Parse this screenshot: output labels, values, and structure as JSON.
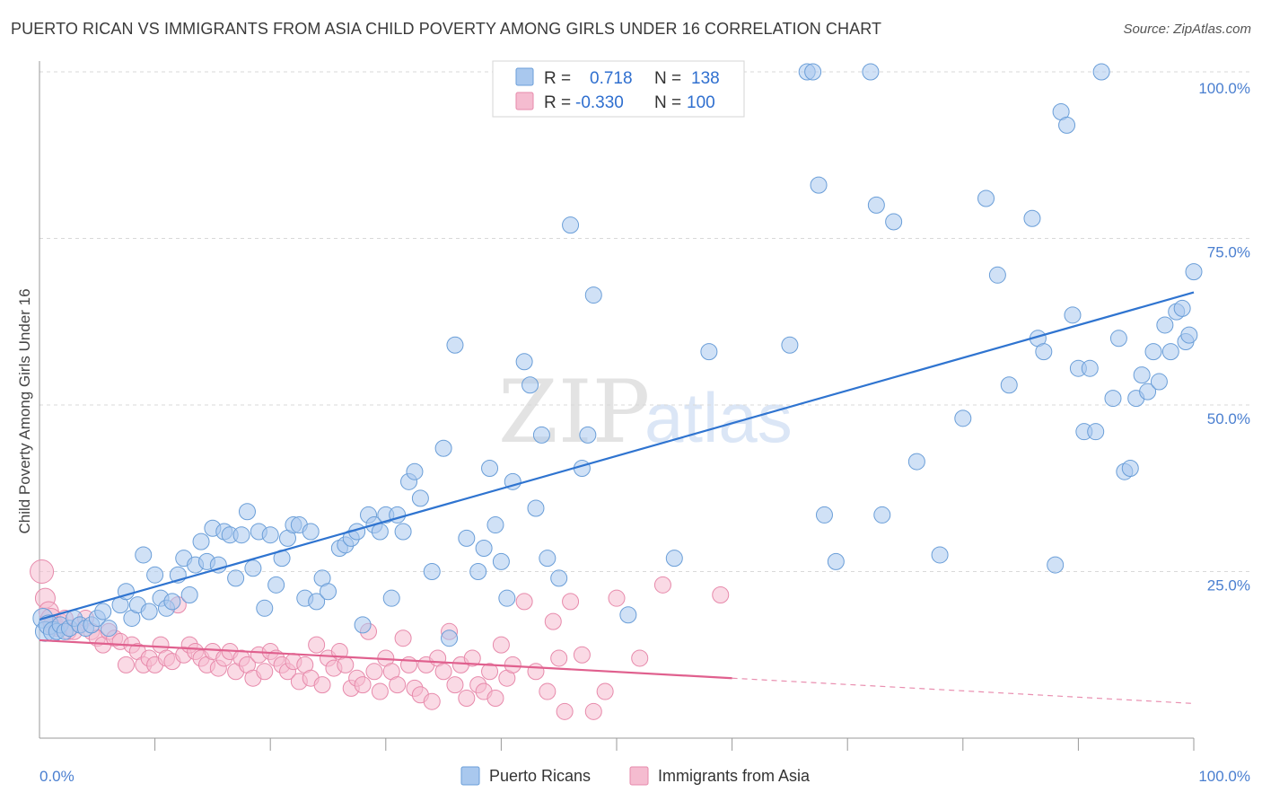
{
  "title": "PUERTO RICAN VS IMMIGRANTS FROM ASIA CHILD POVERTY AMONG GIRLS UNDER 16 CORRELATION CHART",
  "source": "Source: ZipAtlas.com",
  "watermark": {
    "zip": "ZIP",
    "atlas": "atlas"
  },
  "legend_top": [
    {
      "r_label": "R =",
      "r_value": "0.718",
      "n_label": "N =",
      "n_value": "138"
    },
    {
      "r_label": "R =",
      "r_value": "-0.330",
      "n_label": "N =",
      "n_value": "100"
    }
  ],
  "colors": {
    "blue_fill": "#a9c8ee",
    "blue_stroke": "#6a9ed8",
    "blue_line": "#2f74d0",
    "pink_fill": "#f5bcd0",
    "pink_stroke": "#e78aab",
    "pink_line": "#e0608e",
    "grid": "#d9d9d9",
    "tick_text": "#4a7fd0"
  },
  "chart_data": {
    "type": "scatter",
    "title": "PUERTO RICAN VS IMMIGRANTS FROM ASIA CHILD POVERTY AMONG GIRLS UNDER 16 CORRELATION CHART",
    "xlabel": "",
    "ylabel": "Child Poverty Among Girls Under 16",
    "xlim": [
      0,
      100
    ],
    "ylim": [
      0,
      100
    ],
    "x_tick_labels": [
      "0.0%",
      "100.0%"
    ],
    "y_tick_labels": [
      "25.0%",
      "50.0%",
      "75.0%",
      "100.0%"
    ],
    "y_ticks": [
      25,
      50,
      75,
      100
    ],
    "series": [
      {
        "name": "Puerto Ricans",
        "r": 0.718,
        "n": 138,
        "trend": {
          "x0": 0,
          "y0": 17.8,
          "x1": 100,
          "y1": 66.9,
          "dashed_from": null
        },
        "points": [
          [
            0.3,
            18
          ],
          [
            0.5,
            16
          ],
          [
            0.8,
            17
          ],
          [
            1.2,
            16
          ],
          [
            1.5,
            16
          ],
          [
            1.8,
            17
          ],
          [
            2.2,
            16
          ],
          [
            2.6,
            16.5
          ],
          [
            3,
            18
          ],
          [
            3.5,
            17
          ],
          [
            4,
            16.5
          ],
          [
            4.5,
            17
          ],
          [
            5,
            18
          ],
          [
            5.5,
            19
          ],
          [
            6,
            16.5
          ],
          [
            7,
            20
          ],
          [
            7.5,
            22
          ],
          [
            8,
            18
          ],
          [
            8.5,
            20
          ],
          [
            9,
            27.5
          ],
          [
            9.5,
            19
          ],
          [
            10,
            24.5
          ],
          [
            10.5,
            21
          ],
          [
            11,
            19.5
          ],
          [
            11.5,
            20.5
          ],
          [
            12,
            24.5
          ],
          [
            12.5,
            27
          ],
          [
            13,
            21.5
          ],
          [
            13.5,
            26
          ],
          [
            14,
            29.5
          ],
          [
            14.5,
            26.5
          ],
          [
            15,
            31.5
          ],
          [
            15.5,
            26
          ],
          [
            16,
            31
          ],
          [
            16.5,
            30.5
          ],
          [
            17,
            24
          ],
          [
            17.5,
            30.5
          ],
          [
            18,
            34
          ],
          [
            18.5,
            25.5
          ],
          [
            19,
            31
          ],
          [
            19.5,
            19.5
          ],
          [
            20,
            30.5
          ],
          [
            20.5,
            23
          ],
          [
            21,
            27
          ],
          [
            21.5,
            30
          ],
          [
            22,
            32
          ],
          [
            22.5,
            32
          ],
          [
            23,
            21
          ],
          [
            23.5,
            31
          ],
          [
            24,
            20.5
          ],
          [
            24.5,
            24
          ],
          [
            25,
            22
          ],
          [
            26,
            28.5
          ],
          [
            26.5,
            29
          ],
          [
            27,
            30
          ],
          [
            27.5,
            31
          ],
          [
            28,
            17
          ],
          [
            28.5,
            33.5
          ],
          [
            29,
            32
          ],
          [
            29.5,
            31
          ],
          [
            30,
            33.5
          ],
          [
            30.5,
            21
          ],
          [
            31,
            33.5
          ],
          [
            31.5,
            31
          ],
          [
            32,
            38.5
          ],
          [
            32.5,
            40
          ],
          [
            33,
            36
          ],
          [
            34,
            25
          ],
          [
            35,
            43.5
          ],
          [
            35.5,
            15
          ],
          [
            36,
            59
          ],
          [
            37,
            30
          ],
          [
            38,
            25
          ],
          [
            38.5,
            28.5
          ],
          [
            39,
            40.5
          ],
          [
            39.5,
            32
          ],
          [
            40,
            26.5
          ],
          [
            40.5,
            21
          ],
          [
            41,
            38.5
          ],
          [
            42,
            56.5
          ],
          [
            42.5,
            53
          ],
          [
            43,
            34.5
          ],
          [
            43.5,
            45.5
          ],
          [
            44,
            27
          ],
          [
            45,
            24
          ],
          [
            46,
            77
          ],
          [
            47,
            40.5
          ],
          [
            47.5,
            45.5
          ],
          [
            48,
            66.5
          ],
          [
            51,
            18.5
          ],
          [
            55,
            27
          ],
          [
            58,
            58
          ],
          [
            65,
            59
          ],
          [
            66.5,
            100
          ],
          [
            67,
            100
          ],
          [
            67.5,
            83
          ],
          [
            68,
            33.5
          ],
          [
            69,
            26.5
          ],
          [
            72,
            100
          ],
          [
            72.5,
            80
          ],
          [
            73,
            33.5
          ],
          [
            74,
            77.5
          ],
          [
            76,
            41.5
          ],
          [
            78,
            27.5
          ],
          [
            80,
            48
          ],
          [
            82,
            81
          ],
          [
            83,
            69.5
          ],
          [
            84,
            53
          ],
          [
            86,
            78
          ],
          [
            86.5,
            60
          ],
          [
            87,
            58
          ],
          [
            88,
            26
          ],
          [
            88.5,
            94
          ],
          [
            89,
            92
          ],
          [
            89.5,
            63.5
          ],
          [
            90,
            55.5
          ],
          [
            90.5,
            46
          ],
          [
            91,
            55.5
          ],
          [
            91.5,
            46
          ],
          [
            92,
            100
          ],
          [
            93,
            51
          ],
          [
            93.5,
            60
          ],
          [
            94,
            40
          ],
          [
            94.5,
            40.5
          ],
          [
            95,
            51
          ],
          [
            95.5,
            54.5
          ],
          [
            96,
            52
          ],
          [
            96.5,
            58
          ],
          [
            97,
            53.5
          ],
          [
            97.5,
            62
          ],
          [
            98,
            58
          ],
          [
            98.5,
            64
          ],
          [
            99,
            64.5
          ],
          [
            99.3,
            59.5
          ],
          [
            99.6,
            60.5
          ],
          [
            100,
            70
          ]
        ]
      },
      {
        "name": "Immigrants from Asia",
        "r": -0.33,
        "n": 100,
        "trend": {
          "x0": 0,
          "y0": 14.7,
          "x1": 100,
          "y1": 5.2,
          "dashed_from": 60
        },
        "points": [
          [
            0.2,
            25
          ],
          [
            0.5,
            21
          ],
          [
            0.8,
            19
          ],
          [
            1,
            18
          ],
          [
            1.2,
            17
          ],
          [
            1.5,
            16.5
          ],
          [
            1.8,
            17.5
          ],
          [
            2.2,
            18
          ],
          [
            2.5,
            16
          ],
          [
            3,
            16
          ],
          [
            3.5,
            17
          ],
          [
            4,
            18
          ],
          [
            4.5,
            16
          ],
          [
            5,
            15
          ],
          [
            5.5,
            14
          ],
          [
            6,
            16
          ],
          [
            6.5,
            15
          ],
          [
            7,
            14.5
          ],
          [
            7.5,
            11
          ],
          [
            8,
            14
          ],
          [
            8.5,
            13
          ],
          [
            9,
            11
          ],
          [
            9.5,
            12
          ],
          [
            10,
            11
          ],
          [
            10.5,
            14
          ],
          [
            11,
            12
          ],
          [
            11.5,
            11.5
          ],
          [
            12,
            20
          ],
          [
            12.5,
            12.5
          ],
          [
            13,
            14
          ],
          [
            13.5,
            13
          ],
          [
            14,
            12
          ],
          [
            14.5,
            11
          ],
          [
            15,
            13
          ],
          [
            15.5,
            10.5
          ],
          [
            16,
            12
          ],
          [
            16.5,
            13
          ],
          [
            17,
            10
          ],
          [
            17.5,
            12
          ],
          [
            18,
            11
          ],
          [
            18.5,
            9
          ],
          [
            19,
            12.5
          ],
          [
            19.5,
            10
          ],
          [
            20,
            13
          ],
          [
            20.5,
            12
          ],
          [
            21,
            11
          ],
          [
            21.5,
            10
          ],
          [
            22,
            11.5
          ],
          [
            22.5,
            8.5
          ],
          [
            23,
            11
          ],
          [
            23.5,
            9
          ],
          [
            24,
            14
          ],
          [
            24.5,
            8
          ],
          [
            25,
            12
          ],
          [
            25.5,
            10.5
          ],
          [
            26,
            13
          ],
          [
            26.5,
            11
          ],
          [
            27,
            7.5
          ],
          [
            27.5,
            9
          ],
          [
            28,
            8
          ],
          [
            28.5,
            16
          ],
          [
            29,
            10
          ],
          [
            29.5,
            7
          ],
          [
            30,
            12
          ],
          [
            30.5,
            10
          ],
          [
            31,
            8
          ],
          [
            31.5,
            15
          ],
          [
            32,
            11
          ],
          [
            32.5,
            7.5
          ],
          [
            33,
            6.5
          ],
          [
            33.5,
            11
          ],
          [
            34,
            5.5
          ],
          [
            34.5,
            12
          ],
          [
            35,
            10
          ],
          [
            35.5,
            16
          ],
          [
            36,
            8
          ],
          [
            36.5,
            11
          ],
          [
            37,
            6
          ],
          [
            37.5,
            12
          ],
          [
            38,
            8
          ],
          [
            38.5,
            7
          ],
          [
            39,
            10
          ],
          [
            39.5,
            6
          ],
          [
            40,
            14
          ],
          [
            40.5,
            9
          ],
          [
            41,
            11
          ],
          [
            42,
            20.5
          ],
          [
            43,
            10
          ],
          [
            44,
            7
          ],
          [
            44.5,
            17.5
          ],
          [
            45,
            12
          ],
          [
            45.5,
            4
          ],
          [
            46,
            20.5
          ],
          [
            47,
            12.5
          ],
          [
            48,
            4
          ],
          [
            49,
            7
          ],
          [
            50,
            21
          ],
          [
            52,
            12
          ],
          [
            54,
            23
          ],
          [
            59,
            21.5
          ]
        ]
      }
    ]
  },
  "bottom_legend": [
    "Puerto Ricans",
    "Immigrants from Asia"
  ]
}
